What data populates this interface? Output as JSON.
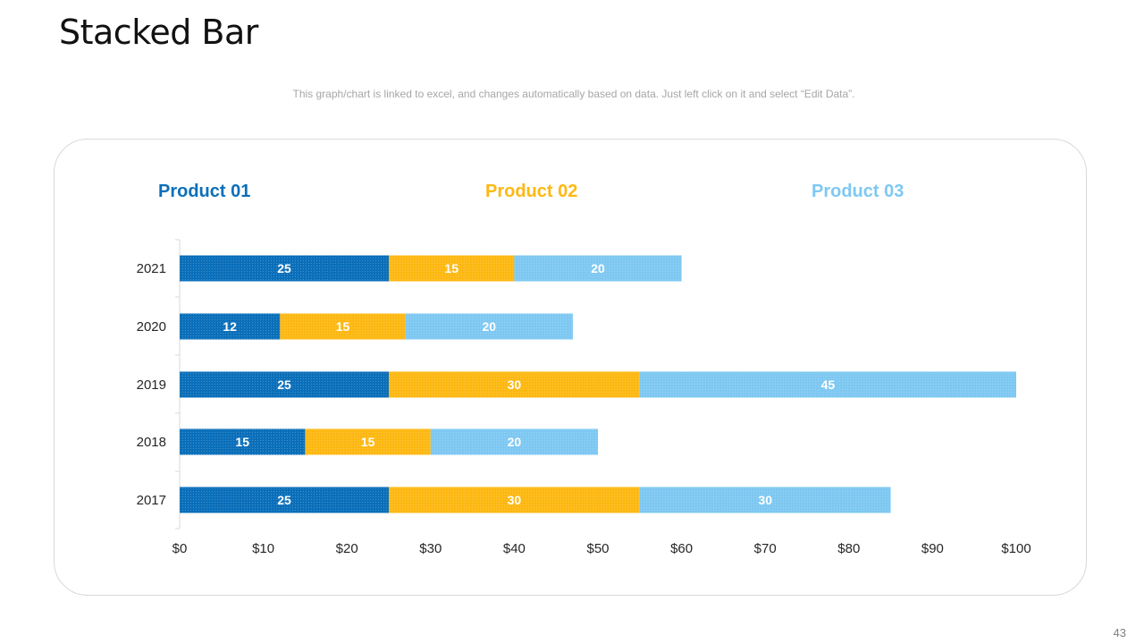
{
  "slide": {
    "title": "Stacked Bar",
    "subtitle": "This graph/chart is linked to excel, and changes automatically based on data. Just left click on it and select “Edit Data”.",
    "page_number": "43"
  },
  "colors": {
    "product_01": "#0b6fba",
    "product_02": "#fdb813",
    "product_03": "#7ec8f2"
  },
  "chart_data": {
    "type": "bar",
    "orientation": "horizontal",
    "stacked": true,
    "categories": [
      "2021",
      "2020",
      "2019",
      "2018",
      "2017"
    ],
    "series": [
      {
        "name": "Product 01",
        "values": [
          25,
          12,
          25,
          15,
          25
        ]
      },
      {
        "name": "Product 02",
        "values": [
          15,
          15,
          30,
          15,
          30
        ]
      },
      {
        "name": "Product 03",
        "values": [
          20,
          20,
          45,
          20,
          30
        ]
      }
    ],
    "xlim": [
      0,
      100
    ],
    "xticks": [
      0,
      10,
      20,
      30,
      40,
      50,
      60,
      70,
      80,
      90,
      100
    ],
    "xtick_labels": [
      "$0",
      "$10",
      "$20",
      "$30",
      "$40",
      "$50",
      "$60",
      "$70",
      "$80",
      "$90",
      "$100"
    ],
    "legend": "top",
    "grid": false,
    "data_labels": true
  }
}
